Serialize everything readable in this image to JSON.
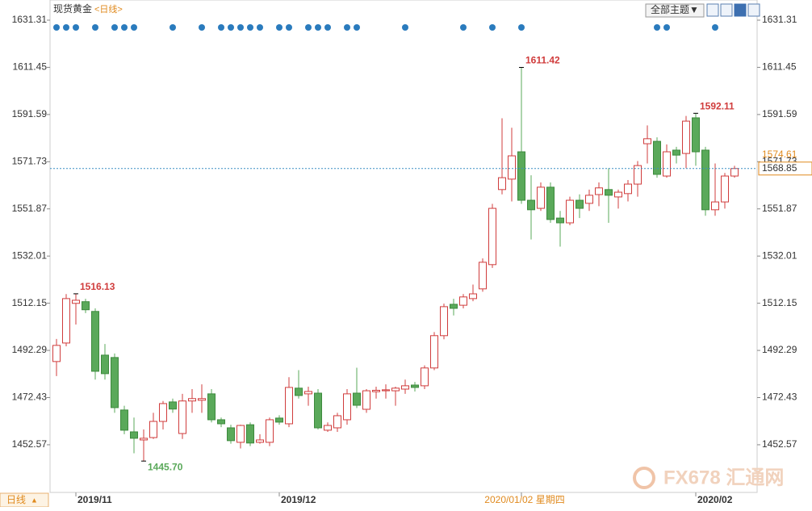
{
  "chart_data": {
    "type": "candlestick",
    "title": "现货黄金",
    "period": "<日线>",
    "theme_button": "全部主题▼",
    "footer_period": "日线",
    "watermark": "FX678 汇通网",
    "categories": [
      null,
      null,
      "2019/11",
      null,
      null,
      null,
      null,
      null,
      null,
      null,
      null,
      null,
      null,
      null,
      null,
      null,
      null,
      null,
      null,
      null,
      null,
      null,
      null,
      "2019/12",
      null,
      null,
      null,
      null,
      null,
      null,
      null,
      null,
      null,
      null,
      null,
      null,
      null,
      null,
      null,
      null,
      null,
      null,
      null,
      null,
      null,
      null,
      null,
      null,
      "2020/01/02 星期四",
      null,
      null,
      null,
      null,
      null,
      null,
      null,
      null,
      null,
      null,
      null,
      null,
      null,
      null,
      null,
      null,
      null,
      "2020/02",
      null,
      null,
      null,
      null
    ],
    "open": [
      1487.6,
      1495.4,
      1512.1,
      1512.8,
      1508.7,
      1490.3,
      1489.3,
      1467.2,
      1458,
      1454.6,
      1455.6,
      1462.4,
      1470.6,
      1457.3,
      1471,
      1471.3,
      1474,
      1463.1,
      1459.7,
      1453.6,
      1461,
      1453.6,
      1453.6,
      1463.8,
      1461.4,
      1476.4,
      1474,
      1474.3,
      1458.7,
      1459.7,
      1463.1,
      1474.3,
      1467.5,
      1474.9,
      1475.3,
      1475.3,
      1476,
      1477.7,
      1477.4,
      1484.9,
      1498.5,
      1511.7,
      1511.3,
      1514.1,
      1518.2,
      1528.4,
      1560,
      1564.4,
      1575.9,
      1555.5,
      1552.1,
      1561,
      1548,
      1546,
      1555.5,
      1554.2,
      1557.9,
      1560,
      1556.9,
      1558.3,
      1562.3,
      1579.3,
      1580.3,
      1565.7,
      1576.6,
      1575.2,
      1590.2,
      1576.6,
      1551.5,
      1554.8,
      1565.7
    ],
    "high": [
      1497.1,
      1516,
      1516.13,
      1514,
      1510,
      1495,
      1491,
      1469,
      1464,
      1459,
      1466,
      1471,
      1472,
      1474,
      1476,
      1478,
      1476,
      1464,
      1461,
      1461,
      1462,
      1457,
      1464,
      1465,
      1481,
      1484,
      1477,
      1476,
      1462,
      1466,
      1476,
      1485,
      1476,
      1477,
      1478,
      1477,
      1480,
      1479,
      1486,
      1500,
      1512,
      1514,
      1516,
      1520,
      1531,
      1554,
      1590,
      1586,
      1611.42,
      1566,
      1563,
      1563,
      1551,
      1557,
      1558,
      1560,
      1563,
      1569,
      1560,
      1564,
      1572,
      1587,
      1582,
      1579,
      1578,
      1591,
      1592.11,
      1578,
      1571,
      1567,
      1570
    ],
    "low": [
      1481.5,
      1494,
      1503.2,
      1508,
      1480,
      1480,
      1466,
      1457,
      1449,
      1445.7,
      1455,
      1459,
      1466,
      1455,
      1466,
      1466,
      1462,
      1460,
      1453,
      1451,
      1452,
      1453,
      1452,
      1461,
      1460,
      1472,
      1469,
      1459,
      1458,
      1458,
      1461,
      1468,
      1466,
      1472,
      1472,
      1469,
      1474,
      1475,
      1476,
      1484,
      1497,
      1507,
      1510,
      1513,
      1517,
      1527,
      1558,
      1555,
      1554,
      1539,
      1551,
      1546,
      1536,
      1545,
      1548,
      1551,
      1553,
      1546,
      1552,
      1555,
      1557,
      1571,
      1565,
      1565,
      1571,
      1569,
      1570,
      1549,
      1549,
      1552,
      1565
    ],
    "close": [
      1494.4,
      1514.1,
      1513.4,
      1509.4,
      1483.5,
      1482.5,
      1468.2,
      1458.7,
      1455.3,
      1455.3,
      1462.4,
      1469.9,
      1467.6,
      1471,
      1472,
      1472,
      1463.1,
      1461.4,
      1454.3,
      1460.7,
      1453.3,
      1454.6,
      1463.1,
      1462.1,
      1476.7,
      1473.3,
      1475,
      1459.7,
      1460.7,
      1464.8,
      1474,
      1469.2,
      1475.3,
      1475.5,
      1475.7,
      1476.4,
      1477.4,
      1476.7,
      1484.9,
      1498.5,
      1510.7,
      1510,
      1514.8,
      1516.1,
      1529.4,
      1552.1,
      1565,
      1574.2,
      1555.5,
      1551.5,
      1561,
      1547.4,
      1546,
      1555.5,
      1552.1,
      1557.6,
      1560.7,
      1557.6,
      1558.9,
      1562.3,
      1570.1,
      1581.4,
      1566.4,
      1575.9,
      1574.5,
      1588.8,
      1575.9,
      1551.5,
      1554.8,
      1565.7,
      1568.85
    ],
    "up_color": "#d03c3c",
    "down_color": "#5aa95a",
    "annotations": [
      {
        "value": 1516.13,
        "label": "1516.13",
        "color": "#d03c3c"
      },
      {
        "value": 1445.7,
        "label": "1445.70",
        "color": "#5aa95a"
      },
      {
        "value": 1611.42,
        "label": "1611.42",
        "color": "#d03c3c"
      },
      {
        "value": 1592.11,
        "label": "1592.11",
        "color": "#d03c3c"
      }
    ],
    "last_price": 1568.85,
    "crosshair_price": 1574.61,
    "ylim": [
      1432.5,
      1639.8
    ],
    "yticks": [
      1631.31,
      1611.45,
      1591.59,
      1571.73,
      1551.87,
      1532.01,
      1512.15,
      1492.29,
      1472.43,
      1452.57
    ]
  }
}
